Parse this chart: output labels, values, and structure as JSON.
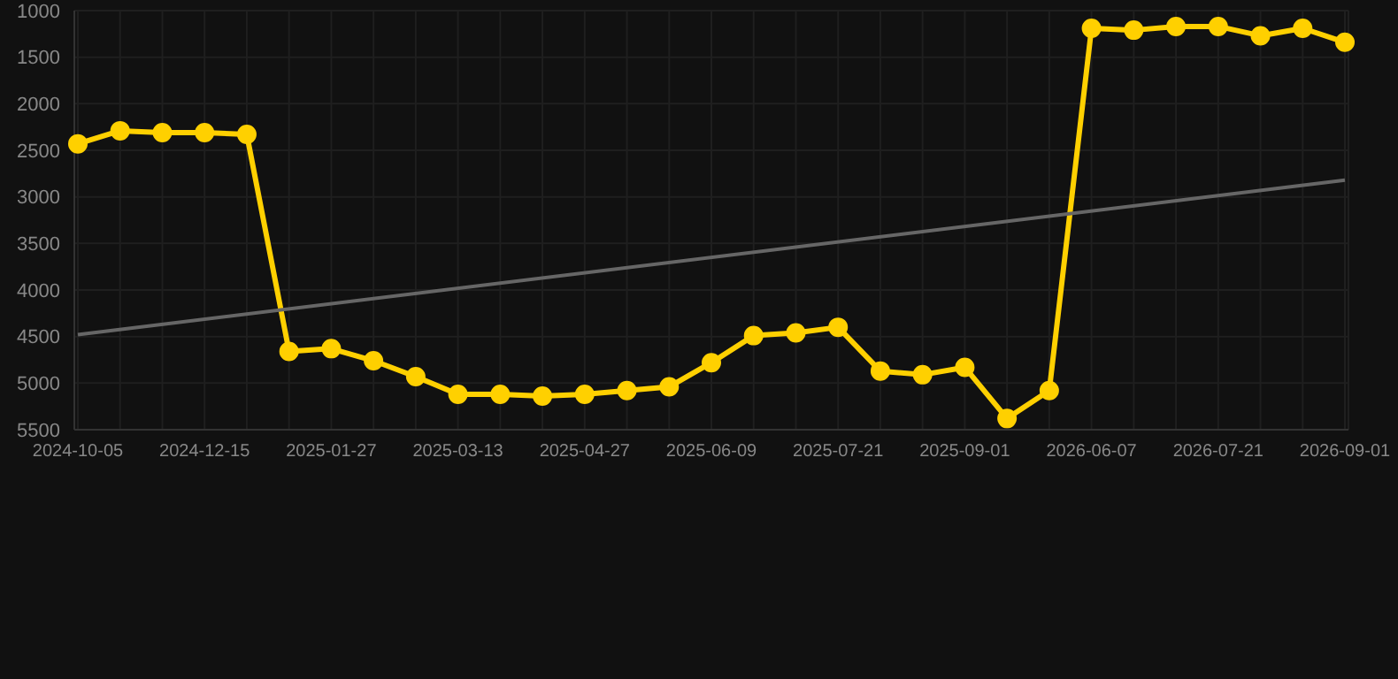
{
  "chart_data": {
    "type": "line",
    "categories": [
      "2024-10-05",
      null,
      null,
      "2024-12-15",
      null,
      null,
      "2025-01-27",
      null,
      null,
      "2025-03-13",
      null,
      null,
      "2025-04-27",
      null,
      null,
      "2025-06-09",
      null,
      null,
      "2025-07-21",
      null,
      null,
      "2025-09-01",
      null,
      null,
      "2026-06-07",
      null,
      null,
      "2026-07-21",
      null,
      null,
      "2026-09-01"
    ],
    "series": [
      {
        "color": "#ffd000",
        "marker": "circle",
        "values": [
          2430,
          2290,
          2310,
          2310,
          2330,
          4660,
          4630,
          4760,
          4930,
          5120,
          5120,
          5140,
          5120,
          5080,
          5040,
          4780,
          4490,
          4460,
          4400,
          4870,
          4910,
          4830,
          5380,
          5080,
          1190,
          1210,
          1170,
          1170,
          1270,
          1190,
          1340
        ]
      },
      {
        "type": "line",
        "color": "#666666",
        "marker": "none",
        "values": [
          4480,
          null,
          null,
          null,
          null,
          null,
          null,
          null,
          null,
          null,
          null,
          null,
          null,
          null,
          null,
          null,
          null,
          null,
          null,
          null,
          null,
          null,
          null,
          null,
          null,
          null,
          null,
          null,
          null,
          null,
          2820
        ]
      }
    ],
    "ylim": [
      5500,
      1000
    ],
    "yticks": [
      1000,
      1500,
      2000,
      2500,
      3000,
      3500,
      4000,
      4500,
      5000,
      5500
    ],
    "grid": true
  }
}
